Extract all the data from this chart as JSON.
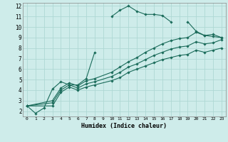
{
  "xlabel": "Humidex (Indice chaleur)",
  "ylabel": "",
  "background_color": "#ceecea",
  "grid_color": "#aed8d4",
  "line_color": "#1a6b5a",
  "xlim": [
    -0.5,
    23.5
  ],
  "ylim": [
    1.5,
    12.3
  ],
  "xticks": [
    0,
    1,
    2,
    3,
    4,
    5,
    6,
    7,
    8,
    9,
    10,
    11,
    12,
    13,
    14,
    15,
    16,
    17,
    18,
    19,
    20,
    21,
    22,
    23
  ],
  "yticks": [
    2,
    3,
    4,
    5,
    6,
    7,
    8,
    9,
    10,
    11,
    12
  ],
  "lines": [
    {
      "x": [
        0,
        1,
        2,
        3,
        4,
        5,
        6,
        7,
        8,
        9,
        10,
        11,
        12,
        13,
        14,
        15,
        16,
        17,
        18,
        19,
        20,
        21,
        22,
        23
      ],
      "y": [
        2.5,
        1.8,
        2.3,
        4.1,
        4.8,
        4.5,
        4.5,
        5.1,
        7.6,
        null,
        11.0,
        11.6,
        12.0,
        11.5,
        11.2,
        11.2,
        11.1,
        10.5,
        null,
        10.5,
        9.6,
        9.2,
        9.3,
        9.0
      ]
    },
    {
      "x": [
        0,
        3,
        4,
        5,
        6,
        7,
        8,
        10,
        11,
        12,
        13,
        14,
        15,
        16,
        17,
        18,
        19,
        20,
        21,
        22,
        23
      ],
      "y": [
        2.5,
        3.0,
        4.2,
        4.7,
        4.4,
        4.9,
        5.1,
        5.7,
        6.2,
        6.7,
        7.1,
        7.6,
        8.0,
        8.4,
        8.7,
        8.9,
        9.0,
        9.5,
        9.2,
        9.1,
        9.0
      ]
    },
    {
      "x": [
        0,
        3,
        4,
        5,
        6,
        7,
        8,
        10,
        11,
        12,
        13,
        14,
        15,
        16,
        17,
        18,
        19,
        20,
        21,
        22,
        23
      ],
      "y": [
        2.5,
        2.8,
        4.0,
        4.5,
        4.2,
        4.6,
        4.8,
        5.3,
        5.7,
        6.2,
        6.5,
        6.9,
        7.3,
        7.6,
        7.9,
        8.1,
        8.2,
        8.6,
        8.4,
        8.5,
        8.8
      ]
    },
    {
      "x": [
        0,
        3,
        4,
        5,
        6,
        7,
        8,
        10,
        11,
        12,
        13,
        14,
        15,
        16,
        17,
        18,
        19,
        20,
        21,
        22,
        23
      ],
      "y": [
        2.5,
        2.5,
        3.8,
        4.3,
        4.0,
        4.3,
        4.5,
        4.9,
        5.2,
        5.7,
        6.0,
        6.3,
        6.6,
        6.9,
        7.1,
        7.3,
        7.4,
        7.8,
        7.6,
        7.8,
        8.0
      ]
    }
  ]
}
